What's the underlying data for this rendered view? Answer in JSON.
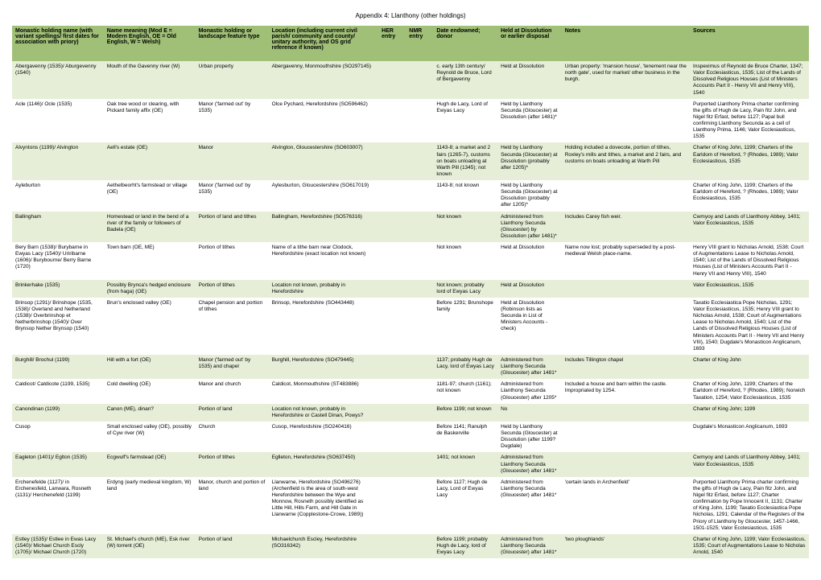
{
  "title": "Appendix 4: Llanthony (other holdings)",
  "columns": [
    "Monastic holding name (with variant spellings/ first dates for association with priory)",
    "Name meaning (Mod E = Modern English, OE = Old English, W = Welsh)",
    "Monastic holding or landscape feature type",
    "Location (including current civil parish/ community and county/ unitary authority, and OS grid reference if known)",
    "HER entry",
    "NMR entry",
    "Date endowned; donor",
    "Held at Dissolution or earlier disposal",
    "Notes",
    "Sources"
  ],
  "rows": [
    [
      "Abergavenny (1535)/ Aburgevenny (1540)",
      "Mouth of the Gavenny river (W)",
      "Urban property",
      "Abergavenny, Monmouthshire (SO297145)",
      "",
      "",
      "c. early 13th century/ Reynold de Bruce, Lord of Bergavenny",
      "Held at Dissolution",
      "Urban property: 'mansion house', 'tenement near the north gate', used for market/ other business in the burgh.",
      "Inspeximus of Reynold de Bruce Charter, 1347; Valor Ecclesiasticus, 1535; List of the Lands of Dissolved Religious Houses (List of Ministers Accounts Part II - Henry VII and Henry VIII), 1540"
    ],
    [
      "Acle (1146)/ Ocle (1535)",
      "Oak tree wood or clearing, with Pickard family affix (OE)",
      "Manor ('farmed out' by 1535)",
      "Olce Pychard, Herefordshire (SO596462)",
      "",
      "",
      "Hugh de Lacy, Lord of Ewyas Lacy",
      "Held by Llanthony Secunda (Gloucester) at Dissolution (after 1481)*",
      "",
      "Purported Llanthony Prima charter confirming the gifts of Hugh de Lacy, Pain fitz John, and Nigel fitz Erfast, before 1127; Papal bull confirming Llanthony Secunda as a cell of Llanthony Prima, 1146; Valor Ecclesiasticus, 1535"
    ],
    [
      "Alvyntons (1199)/ Alvington",
      "Aell's estate (OE)",
      "Manor",
      "Alvington, Gloucestershire (SO603007)",
      "",
      "",
      "1143-8; a market and 2 fairs (1265-7), customs on boats unloading at Warth Pill (1345); not known",
      "Held by Llanthony Secunda (Gloucester) at Dissolution (probably after 1205)*",
      "Holding included a dovecote, portion of tithes, Roxley's mills and tithes, a market and 2 fairs, and customs on boats unloading at Warth Pill",
      "Charter of King John, 1199; Charters of the Earldom of Hereford, ? (Rhodes, 1989); Valor Ecclesiasticus, 1535"
    ],
    [
      "Ayleburton",
      "Aethelbeorht's farmstead or village (OE)",
      "Manor ('farmed out' by 1535)",
      "Aylesburton, Gloucestershire (SO617019)",
      "",
      "",
      "1143-8; not known",
      "Held by Llanthony Secunda (Gloucester) at Dissolution (probably after 1205)*",
      "",
      "Charter of King John, 1199; Charters of the Earldom of Hereford, ? (Rhodes, 1989); Valor Ecclesiasticus, 1535"
    ],
    [
      "Ballingham",
      "Homestead or land in the bend of a river of the family or followers of Badela (OE)",
      "Portion of land and tithes",
      "Ballingham, Herefordshire (SO576316)",
      "",
      "",
      "Not known",
      "Administered from Llanthony Secunda (Gloucester) by Dissolution (after 1481)*",
      "Includes Carey fish weir.",
      "Cwmyoy and Lands of Llanthony Abbey, 1401; Valor Ecclesiasticus, 1535"
    ],
    [
      "Bery Barn (1538)/ Burybarne in Ewyas Lacy (1540)/ Uriribarne (1606)/ Burybourne/ Berry Barne (1720)",
      "Town barn (OE, ME)",
      "Portion of tithes",
      "Name of a tithe barn near Clodock, Herefordshire (exact location not known)",
      "",
      "",
      "Not known",
      "Held at Dissolution",
      "Name now lost; probably superseded by a post-medieval Welsh place-name.",
      "Henry VIII grant to Nicholas Arnold, 1538; Court of Augmentations Lease to Nicholas Arnold, 1540; List of the Lands of Dissolved Religious Houses (List of Ministers Accounts Part II - Henry VII and Henry VIII), 1540"
    ],
    [
      "Brinkerhake (1535)",
      "Possibly Brynca's hedged enclosure (from haga) (OE)",
      "Portion of tithes",
      "Location not known, probably in Herefordshire",
      "",
      "",
      "Not known; probably lord of Ewyas Lacy",
      "Held at Dissolution",
      "",
      "Valor Ecclesiasticus, 1535"
    ],
    [
      "Brinsop (1291)/ Brinshope (1535, 1538)/ Overland and Netherland (1538)/ Overbrinshop et Netherbrinshop (1540)/ Over Brynsop Nether Brynsop (1540)",
      "Brun's enclosed valley (OE)",
      "Chapel pension and portion of tithes",
      "Brinsop, Herefordshire (SO443448)",
      "",
      "",
      "Before 1291; Brunshope family",
      "Held at Dissolution (Robinson lists as Secunda in List of Ministers Accounts - check)",
      "",
      "Taxatio Ecclesiastica Pope Nicholas, 1291; Valor Ecclesiasticus, 1535; Henry VIII grant to Nicholas Arnold, 1538; Court of Augmentations Lease to Nicholas Arnold, 1540; List of the Lands of Dissolved Religious Houses (List of Ministers Accounts Part II - Henry VII and Henry VIII), 1540; Dugdale's Monasticon Anglicanum, 1693"
    ],
    [
      "Burghill/ Brochul (1199)",
      "Hill with a fort (OE)",
      "Manor ('farmed out' by 1535) and chapel",
      "Burghill, Herefordshire (SO479445)",
      "",
      "",
      "1137; probably Hugh de Lacy, lord of Ewyas Lacy",
      "Administered from Llanthony Secunda (Gloucester) after 1481*",
      "Includes Tillington chapel",
      "Charter of King John"
    ],
    [
      "Caldicot/ Caldicote (1199, 1535)",
      "Cold dwelling (OE)",
      "Manor and church",
      "Caldicot, Monmouthshire (ST483886)",
      "",
      "",
      "1181-97; church (1161); not known",
      "Administered from Llanthony Secunda (Gloucester) after 1205*",
      "Included a house and barn within the castle. Impropriated by 1254.",
      "Charter of King John, 1199; Charters of the Earldom of Hereford, ? (Rhodes, 1989); Norwich Taxation, 1254; Valor Ecclesiasticus, 1535"
    ],
    [
      "Canondinan (1199)",
      "Canon (ME), dinan?",
      "Portion of land",
      "Location not known, probably in Herefordshire or Castell Dinan, Powys?",
      "",
      "",
      "Before 1199; not known",
      "No",
      "",
      "Charter of King John; 1199"
    ],
    [
      "Cusop",
      "Small enclosed valley (OE), possibly of Cyw river (W)",
      "Church",
      "Cusop, Herefordshire (SO240416)",
      "",
      "",
      "Before 1141; Ranulph de Baskerville",
      "Held by Llanthony Secunda (Gloucester) at Dissolution (after 1199? Dugdale)",
      "",
      "Dugdale's Monasticon Anglicanum, 1693"
    ],
    [
      "Eagleton (1401)/ Eglton (1535)",
      "Ecgwulf's farmstead (OE)",
      "Portion of tithes",
      "Eglleton, Herefordshire (SO637450)",
      "",
      "",
      "1401; not known",
      "Administered from Llanthony Secunda (Gloucester) after 1481*",
      "",
      "Cwmyoy and Lands of Llanthony Abbey, 1401; Valor Ecclesiasticus, 1535"
    ],
    [
      "Erchenefelde (1127)/ in Erchenesfeld, Lanwara, Rosneth (1131)/ Herchenefeld (1199)",
      "Erdyng (early medieval kingdom, W) land",
      "Manor, church and portion of land",
      "Llanwarne, Herefordshire (SO496276) (Archenfield is the area of south-west Herefordshire between the Wye and Monnow, Rosneth possibly identified as Little Hill, Hills Farm, and Hill Gate in Llanwarne (Copplestone-Crowe, 1989))",
      "",
      "",
      "Before 1127; Hugh de Lacy, Lord of Ewyas Lacy",
      "Administered from Llanthony Secunda (Gloucester) after 1481*",
      "'certain lands in Archenfield'",
      "Purported Llanthony Prima charter confirming the gifts of Hugh de Lacy, Pain fitz John, and Nigel fitz Erfast, before 1127; Charter confirmation by Pope Innocent II, 1131; Charter of King John, 1199; Taxatio Ecclesiastica Pope Nicholas, 1291; Calendar of the Registers of the Priory of Llanthony by Gloucester, 1457-1466, 1501-1525; Valor Ecclesiasticus, 1535"
    ],
    [
      "Estley (1535)/ Estlee in Ewas Lacy (1540)/ Michael Church Escly (1705)/ Michael Church (1720)",
      "St. Michael's church (ME), Esk river (W) torrent (OE)",
      "Portion of land",
      "Michaelchurch Escley, Herefordshire (SO316342)",
      "",
      "",
      "Before 1199; probably Hugh de Lacy, lord of Ewyas Lacy",
      "Administered from Llanthony Secunda (Gloucester) after 1481*",
      "'two ploughlands'",
      "Charter of King John, 1199; Valor Ecclesiasticus, 1535; Court of Augmentations Lease to Nicholas Arnold, 1540"
    ]
  ]
}
